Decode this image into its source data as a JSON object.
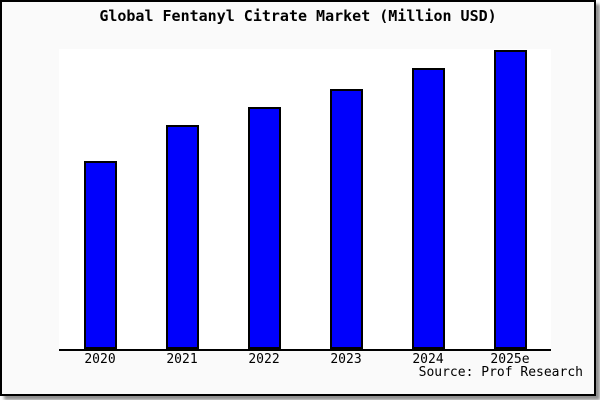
{
  "title": "Global Fentanyl Citrate Market (Million USD)",
  "source": "Source: Prof Research",
  "colors": {
    "bar_fill": "#0000fc",
    "bar_border": "#000000",
    "frame_background": "#fafafa",
    "plot_background": "#ffffff",
    "axis": "#000000",
    "frame_border": "#000000"
  },
  "chart_data": {
    "type": "bar",
    "title": "Global Fentanyl Citrate Market (Million USD)",
    "categories": [
      "2020",
      "2021",
      "2022",
      "2023",
      "2024",
      "2025e"
    ],
    "values": [
      63,
      75,
      81,
      87,
      94,
      100
    ],
    "xlabel": "",
    "ylabel": "",
    "ylim": [
      0,
      100.3
    ],
    "grid": false,
    "legend": false,
    "y_axis_labels_shown": false,
    "note": "No y-axis ticks or value labels are shown; values are estimated from relative bar heights with 2025e normalized to 100.",
    "source_annotation": "Source: Prof Research"
  }
}
